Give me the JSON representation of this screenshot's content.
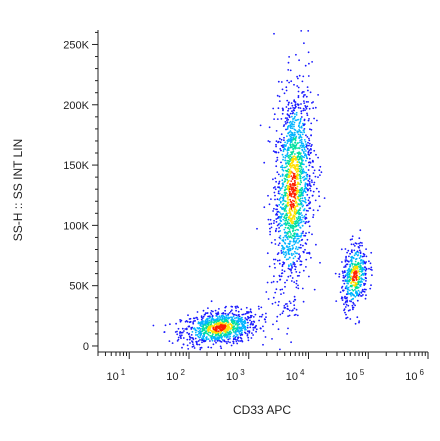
{
  "chart_data": {
    "type": "scatter",
    "subtype": "flow cytometry density dot plot",
    "xlabel": "CD33 APC",
    "ylabel": "SS-H :: SS INT LIN",
    "x_scale": "log",
    "xlim": [
      3,
      1000000
    ],
    "ylim": [
      -5000,
      262000
    ],
    "x_ticks": [
      {
        "base": "10",
        "exp": "1",
        "value": 10
      },
      {
        "base": "10",
        "exp": "2",
        "value": 100
      },
      {
        "base": "10",
        "exp": "3",
        "value": 1000
      },
      {
        "base": "10",
        "exp": "4",
        "value": 10000
      },
      {
        "base": "10",
        "exp": "5",
        "value": 100000
      },
      {
        "base": "10",
        "exp": "6",
        "value": 1000000
      }
    ],
    "y_ticks": [
      {
        "label": "0",
        "value": 0
      },
      {
        "label": "50K",
        "value": 50000
      },
      {
        "label": "100K",
        "value": 100000
      },
      {
        "label": "150K",
        "value": 150000
      },
      {
        "label": "200K",
        "value": 200000
      },
      {
        "label": "250K",
        "value": 250000
      }
    ],
    "grid": false,
    "colormap": [
      "#1a1aff",
      "#00b4ff",
      "#00e0a0",
      "#ffe000",
      "#ff2000"
    ],
    "populations": [
      {
        "cx": 330,
        "cy": 15000,
        "sdx_decades": 0.32,
        "sdy": 7000,
        "count": 900
      },
      {
        "cx": 5500,
        "cy": 130000,
        "sdx_decades": 0.16,
        "sdy": 42000,
        "count": 1500
      },
      {
        "cx": 60000,
        "cy": 58000,
        "sdx_decades": 0.11,
        "sdy": 13000,
        "count": 450
      }
    ]
  }
}
